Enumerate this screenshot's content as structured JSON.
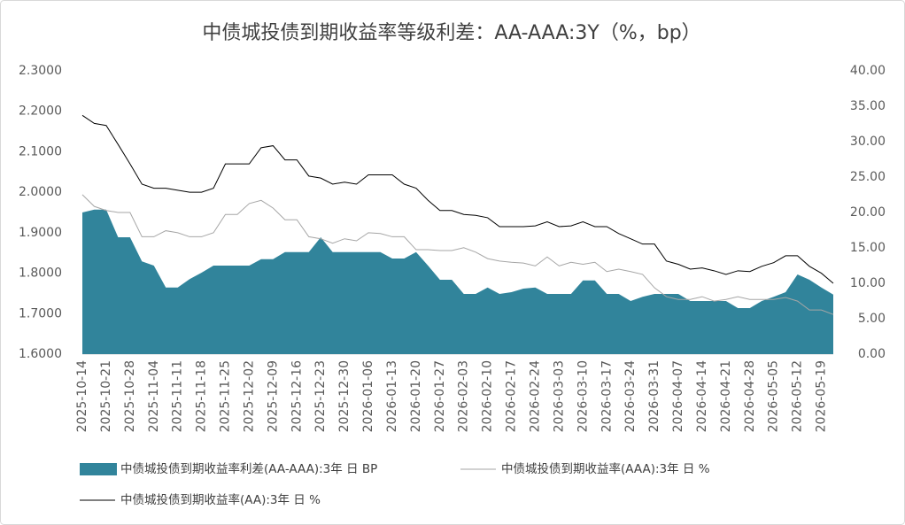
{
  "chart_data": {
    "type": "area-line",
    "title": "中债城投债到期收益率等级利差：AA-AAA:3Y（%，bp）",
    "categories": [
      "2025-10-14",
      null,
      "2025-10-21",
      null,
      "2025-10-28",
      null,
      "2025-11-04",
      null,
      "2025-11-11",
      null,
      "2025-11-18",
      null,
      "2025-11-25",
      null,
      "2025-12-02",
      null,
      "2025-12-09",
      null,
      "2025-12-16",
      null,
      "2025-12-23",
      null,
      "2025-12-30",
      null,
      "2026-01-06",
      null,
      "2026-01-13",
      null,
      "2026-01-20",
      null,
      "2026-01-27",
      null,
      "2026-02-03",
      null,
      "2026-02-10",
      null,
      "2026-02-17",
      null,
      "2026-02-24",
      null,
      "2026-03-03",
      null,
      "2026-03-10",
      null,
      "2026-03-17",
      null,
      "2026-03-24",
      null,
      "2026-03-31",
      null,
      "2026-04-07",
      null,
      "2026-04-14",
      null,
      "2026-04-21",
      null,
      "2026-04-28",
      null,
      "2026-05-05",
      null,
      "2026-05-12",
      null,
      "2026-05-19",
      null
    ],
    "series": [
      {
        "name": "中债城投债到期收益率利差(AA-AAA):3年 日 BP",
        "color": "#31849b",
        "axis": "y2",
        "kind": "area",
        "values": [
          20,
          20.4,
          20.4,
          16.5,
          16.5,
          13.1,
          12.5,
          9.4,
          9.4,
          10.6,
          11.5,
          12.5,
          12.5,
          12.5,
          12.5,
          13.4,
          13.4,
          14.4,
          14.4,
          14.4,
          16.5,
          14.4,
          14.4,
          14.4,
          14.4,
          14.4,
          13.5,
          13.5,
          14.4,
          12.5,
          10.5,
          10.5,
          8.5,
          8.5,
          9.4,
          8.5,
          8.75,
          9.25,
          9.4,
          8.5,
          8.5,
          8.5,
          10.4,
          10.4,
          8.5,
          8.5,
          7.5,
          8.1,
          8.5,
          8.5,
          8.5,
          7.5,
          7.5,
          7.5,
          7.5,
          6.5,
          6.5,
          7.5,
          8.1,
          8.75,
          11.25,
          10.5,
          9.4,
          8.4
        ]
      },
      {
        "name": "中债城投债到期收益率(AAA):3年 日 %",
        "color": "#a6a6a6",
        "kind": "line",
        "values": [
          1.994,
          1.965,
          1.955,
          1.95,
          1.95,
          1.89,
          1.89,
          1.905,
          1.9,
          1.89,
          1.89,
          1.9,
          1.945,
          1.945,
          1.972,
          1.98,
          1.961,
          1.932,
          1.932,
          1.89,
          1.885,
          1.874,
          1.885,
          1.88,
          1.9,
          1.898,
          1.89,
          1.89,
          1.858,
          1.858,
          1.856,
          1.856,
          1.863,
          1.852,
          1.836,
          1.83,
          1.827,
          1.825,
          1.818,
          1.84,
          1.818,
          1.827,
          1.822,
          1.827,
          1.804,
          1.81,
          1.804,
          1.797,
          1.764,
          1.742,
          1.735,
          1.735,
          1.742,
          1.731,
          1.735,
          1.742,
          1.735,
          1.735,
          1.735,
          1.74,
          1.731,
          1.709,
          1.709,
          1.698
        ]
      },
      {
        "name": "中债城投债到期收益率(AA):3年 日 %",
        "color": "#000000",
        "kind": "line",
        "values": [
          2.19,
          2.17,
          2.165,
          2.118,
          2.07,
          2.02,
          2.01,
          2.01,
          2.005,
          2.0,
          2.0,
          2.01,
          2.07,
          2.07,
          2.07,
          2.11,
          2.115,
          2.08,
          2.08,
          2.04,
          2.035,
          2.02,
          2.025,
          2.02,
          2.043,
          2.043,
          2.043,
          2.02,
          2.01,
          1.98,
          1.955,
          1.955,
          1.945,
          1.943,
          1.937,
          1.915,
          1.915,
          1.915,
          1.917,
          1.927,
          1.915,
          1.917,
          1.927,
          1.915,
          1.915,
          1.898,
          1.885,
          1.872,
          1.872,
          1.83,
          1.822,
          1.81,
          1.813,
          1.806,
          1.797,
          1.806,
          1.804,
          1.817,
          1.826,
          1.843,
          1.843,
          1.817,
          1.8,
          1.775
        ]
      }
    ],
    "ylim": [
      1.6,
      2.3
    ],
    "yticks": [
      {
        "value": 1.6,
        "label": "1.6000"
      },
      {
        "value": 1.7,
        "label": "1.7000"
      },
      {
        "value": 1.8,
        "label": "1.8000"
      },
      {
        "value": 1.9,
        "label": "1.9000"
      },
      {
        "value": 2.0,
        "label": "2.0000"
      },
      {
        "value": 2.1,
        "label": "2.1000"
      },
      {
        "value": 2.2,
        "label": "2.2000"
      },
      {
        "value": 2.3,
        "label": "2.3000"
      }
    ],
    "y2lim": [
      0,
      40
    ],
    "y2ticks": [
      {
        "value": 0,
        "label": "0.00"
      },
      {
        "value": 5,
        "label": "5.00"
      },
      {
        "value": 10,
        "label": "10.00"
      },
      {
        "value": 15,
        "label": "15.00"
      },
      {
        "value": 20,
        "label": "20.00"
      },
      {
        "value": 25,
        "label": "25.00"
      },
      {
        "value": 30,
        "label": "30.00"
      },
      {
        "value": 35,
        "label": "35.00"
      },
      {
        "value": 40,
        "label": "40.00"
      }
    ],
    "legend": "bottom"
  }
}
